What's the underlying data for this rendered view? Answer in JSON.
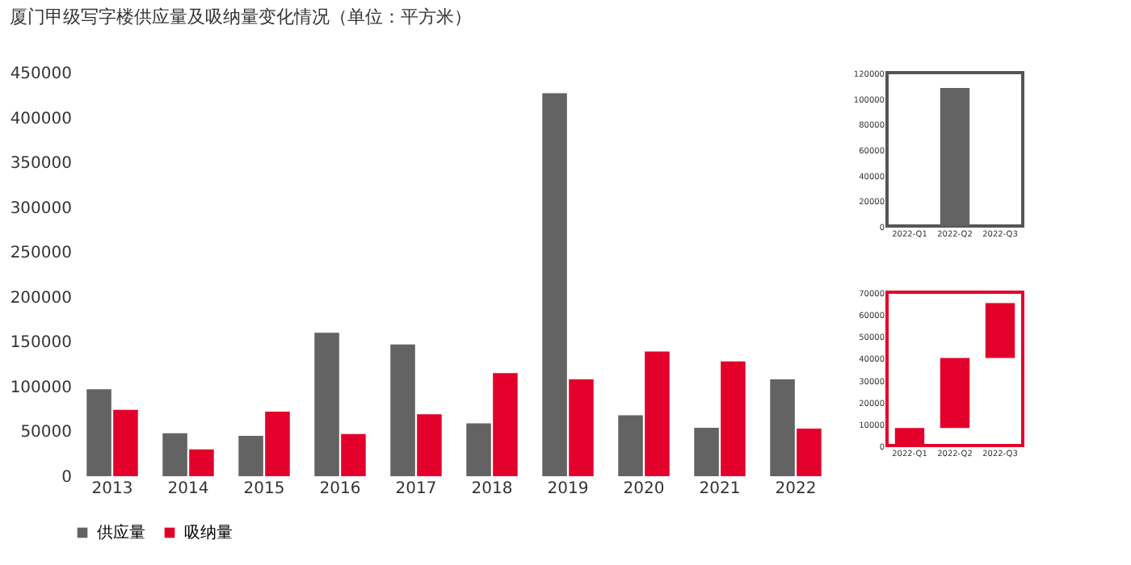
{
  "chart_data": [
    {
      "type": "bar",
      "title": "厦门甲级写字楼供应量及吸纳量变化情况（单位：平方米）",
      "categories": [
        "2013",
        "2014",
        "2015",
        "2016",
        "2017",
        "2018",
        "2019",
        "2020",
        "2021",
        "2022"
      ],
      "series": [
        {
          "name": "供应量",
          "color": "#636363",
          "values": [
            97000,
            48000,
            45000,
            160000,
            147000,
            59000,
            427000,
            68000,
            54000,
            108000
          ]
        },
        {
          "name": "吸纳量",
          "color": "#e3002b",
          "values": [
            74000,
            30000,
            72000,
            47000,
            69000,
            115000,
            108000,
            139000,
            128000,
            53000
          ]
        }
      ],
      "ylim": [
        0,
        450000
      ],
      "yticks": [
        0,
        50000,
        100000,
        150000,
        200000,
        250000,
        300000,
        350000,
        400000,
        450000
      ],
      "legend": "bottom"
    },
    {
      "type": "bar",
      "categories": [
        "2022-Q1",
        "2022-Q2",
        "2022-Q3"
      ],
      "series": [
        {
          "color": "#636363",
          "values": [
            null,
            108000,
            null
          ]
        }
      ],
      "ylim": [
        0,
        120000
      ],
      "yticks": [
        0,
        20000,
        40000,
        60000,
        80000,
        100000,
        120000
      ]
    },
    {
      "type": "bar",
      "categories": [
        "2022-Q1",
        "2022-Q2",
        "2022-Q3"
      ],
      "series": [
        {
          "color": "#e3002b",
          "values": [
            8000,
            32000,
            25000
          ],
          "base": [
            0,
            8000,
            40000
          ]
        }
      ],
      "ylim": [
        0,
        70000
      ],
      "yticks": [
        0,
        10000,
        20000,
        30000,
        40000,
        50000,
        60000,
        70000
      ]
    }
  ]
}
